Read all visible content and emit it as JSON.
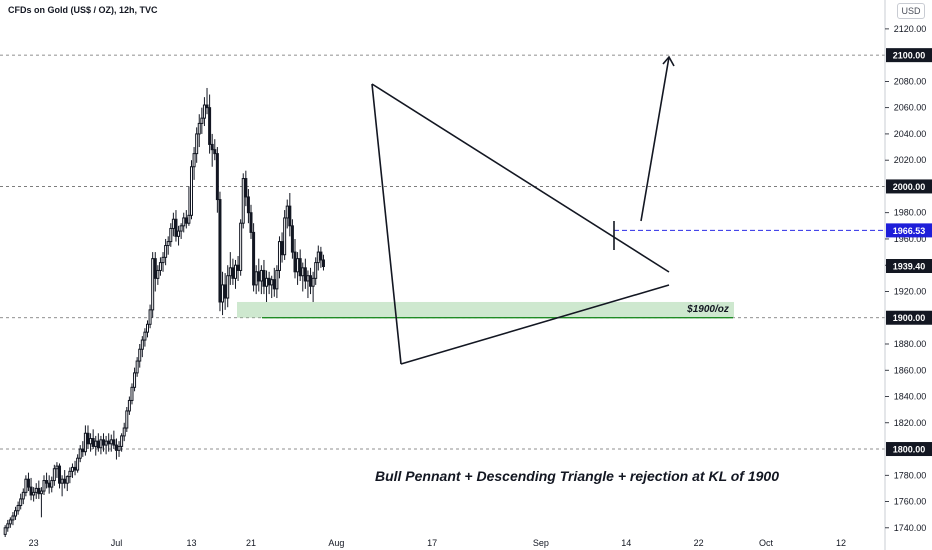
{
  "header": {
    "symbol_title": "CFDs on Gold (US$ / OZ), 12h, TVC",
    "currency_button": "USD"
  },
  "colors": {
    "candle": "#131722",
    "background": "#ffffff",
    "axis_text": "#131722",
    "level_line": "#6b6b6b",
    "target_line": "#2d2de6",
    "target_label_bg": "#1e1ed9",
    "support_zone": "#a5d6a7",
    "support_line": "#1f8b24"
  },
  "annotation": {
    "main_text": "Bull Pennant + Descending Triangle + rejection at KL of 1900",
    "zone_label": "$1900/oz"
  },
  "chart_data": {
    "type": "candlestick",
    "title": "",
    "xlabel": "",
    "ylabel": "",
    "ylim": [
      1733,
      2142
    ],
    "y_ticks": [
      1740,
      1760,
      1780,
      1800,
      1820,
      1840,
      1860,
      1880,
      1900,
      1920,
      1940,
      1960,
      1980,
      2000,
      2020,
      2040,
      2060,
      2080,
      2100,
      2120
    ],
    "x_ticks": [
      "23",
      "Jul",
      "13",
      "21",
      "Aug",
      "17",
      "Sep",
      "14",
      "22",
      "Oct",
      "12"
    ],
    "x_tick_bars": [
      11,
      43,
      72,
      95,
      128,
      165,
      207,
      240,
      268,
      294,
      323
    ],
    "x_range_bars": [
      -2,
      340
    ],
    "price_labels": [
      {
        "value": 2100.0,
        "text": "2100.00",
        "style": "dark"
      },
      {
        "value": 2000.0,
        "text": "2000.00",
        "style": "dark"
      },
      {
        "value": 1966.53,
        "text": "1966.53",
        "style": "blue"
      },
      {
        "value": 1939.4,
        "text": "1939.40",
        "style": "dark"
      },
      {
        "value": 1900.0,
        "text": "1900.00",
        "style": "dark"
      },
      {
        "value": 1800.0,
        "text": "1800.00",
        "style": "dark"
      }
    ],
    "horizontal_levels": [
      2100,
      2000,
      1900,
      1800
    ],
    "target_level": 1966.53,
    "support_zone": {
      "from": 1900,
      "to": 1912
    },
    "ohlc": [
      [
        1735,
        1742,
        1733,
        1740
      ],
      [
        1740,
        1746,
        1737,
        1743
      ],
      [
        1743,
        1748,
        1740,
        1746
      ],
      [
        1746,
        1752,
        1742,
        1749
      ],
      [
        1749,
        1756,
        1746,
        1753
      ],
      [
        1753,
        1760,
        1750,
        1757
      ],
      [
        1757,
        1766,
        1754,
        1762
      ],
      [
        1762,
        1770,
        1758,
        1767
      ],
      [
        1767,
        1780,
        1764,
        1777
      ],
      [
        1777,
        1782,
        1768,
        1771
      ],
      [
        1771,
        1778,
        1761,
        1765
      ],
      [
        1765,
        1771,
        1760,
        1767
      ],
      [
        1767,
        1774,
        1762,
        1770
      ],
      [
        1770,
        1776,
        1762,
        1766
      ],
      [
        1766,
        1771,
        1748,
        1768
      ],
      [
        1768,
        1780,
        1765,
        1776
      ],
      [
        1776,
        1782,
        1770,
        1774
      ],
      [
        1774,
        1780,
        1766,
        1771
      ],
      [
        1771,
        1779,
        1767,
        1776
      ],
      [
        1776,
        1788,
        1772,
        1785
      ],
      [
        1785,
        1790,
        1778,
        1787
      ],
      [
        1787,
        1789,
        1770,
        1774
      ],
      [
        1774,
        1780,
        1764,
        1777
      ],
      [
        1777,
        1784,
        1770,
        1774
      ],
      [
        1774,
        1780,
        1768,
        1779
      ],
      [
        1779,
        1786,
        1774,
        1783
      ],
      [
        1783,
        1789,
        1778,
        1786
      ],
      [
        1786,
        1791,
        1780,
        1784
      ],
      [
        1784,
        1796,
        1782,
        1793
      ],
      [
        1793,
        1803,
        1790,
        1800
      ],
      [
        1800,
        1806,
        1794,
        1798
      ],
      [
        1798,
        1818,
        1795,
        1812
      ],
      [
        1812,
        1818,
        1800,
        1804
      ],
      [
        1804,
        1812,
        1798,
        1808
      ],
      [
        1808,
        1815,
        1800,
        1802
      ],
      [
        1802,
        1810,
        1795,
        1806
      ],
      [
        1806,
        1812,
        1798,
        1801
      ],
      [
        1801,
        1810,
        1796,
        1807
      ],
      [
        1807,
        1812,
        1798,
        1803
      ],
      [
        1803,
        1810,
        1796,
        1806
      ],
      [
        1806,
        1812,
        1798,
        1804
      ],
      [
        1804,
        1811,
        1798,
        1807
      ],
      [
        1807,
        1814,
        1800,
        1803
      ],
      [
        1803,
        1808,
        1792,
        1799
      ],
      [
        1799,
        1806,
        1794,
        1802
      ],
      [
        1802,
        1812,
        1798,
        1810
      ],
      [
        1810,
        1820,
        1806,
        1816
      ],
      [
        1816,
        1832,
        1813,
        1829
      ],
      [
        1829,
        1840,
        1826,
        1837
      ],
      [
        1837,
        1850,
        1834,
        1847
      ],
      [
        1847,
        1862,
        1844,
        1858
      ],
      [
        1858,
        1870,
        1855,
        1867
      ],
      [
        1867,
        1880,
        1862,
        1876
      ],
      [
        1876,
        1886,
        1870,
        1883
      ],
      [
        1883,
        1892,
        1878,
        1889
      ],
      [
        1889,
        1898,
        1885,
        1895
      ],
      [
        1895,
        1910,
        1892,
        1906
      ],
      [
        1906,
        1950,
        1900,
        1945
      ],
      [
        1945,
        1950,
        1920,
        1930
      ],
      [
        1930,
        1940,
        1925,
        1936
      ],
      [
        1936,
        1946,
        1932,
        1942
      ],
      [
        1942,
        1950,
        1935,
        1946
      ],
      [
        1946,
        1960,
        1940,
        1955
      ],
      [
        1955,
        1962,
        1948,
        1958
      ],
      [
        1958,
        1972,
        1954,
        1968
      ],
      [
        1968,
        1980,
        1962,
        1975
      ],
      [
        1975,
        1982,
        1958,
        1962
      ],
      [
        1962,
        1970,
        1955,
        1966
      ],
      [
        1966,
        1972,
        1960,
        1970
      ],
      [
        1970,
        1980,
        1965,
        1976
      ],
      [
        1976,
        1982,
        1968,
        1972
      ],
      [
        1972,
        2000,
        1970,
        1978
      ],
      [
        1978,
        2020,
        1975,
        2015
      ],
      [
        2015,
        2030,
        2005,
        2025
      ],
      [
        2025,
        2045,
        2018,
        2040
      ],
      [
        2040,
        2055,
        2030,
        2048
      ],
      [
        2048,
        2060,
        2040,
        2052
      ],
      [
        2052,
        2068,
        2046,
        2062
      ],
      [
        2062,
        2075,
        2055,
        2060
      ],
      [
        2060,
        2070,
        2025,
        2032
      ],
      [
        2032,
        2040,
        2015,
        2028
      ],
      [
        2028,
        2036,
        2020,
        2025
      ],
      [
        2025,
        2030,
        1980,
        1990
      ],
      [
        1990,
        1996,
        1905,
        1912
      ],
      [
        1912,
        1935,
        1902,
        1925
      ],
      [
        1925,
        1934,
        1906,
        1915
      ],
      [
        1915,
        1940,
        1908,
        1932
      ],
      [
        1932,
        1950,
        1925,
        1938
      ],
      [
        1938,
        1945,
        1925,
        1930
      ],
      [
        1930,
        1944,
        1922,
        1940
      ],
      [
        1940,
        1947,
        1928,
        1936
      ],
      [
        1936,
        1975,
        1932,
        1972
      ],
      [
        1972,
        2010,
        1968,
        2006
      ],
      [
        2006,
        2012,
        1985,
        1992
      ],
      [
        1992,
        1998,
        1972,
        1980
      ],
      [
        1980,
        1986,
        1960,
        1965
      ],
      [
        1965,
        1972,
        1920,
        1925
      ],
      [
        1925,
        1940,
        1918,
        1935
      ],
      [
        1935,
        1945,
        1920,
        1928
      ],
      [
        1928,
        1940,
        1918,
        1936
      ],
      [
        1936,
        1944,
        1918,
        1924
      ],
      [
        1924,
        1936,
        1912,
        1930
      ],
      [
        1930,
        1935,
        1918,
        1925
      ],
      [
        1925,
        1932,
        1915,
        1929
      ],
      [
        1929,
        1938,
        1916,
        1922
      ],
      [
        1922,
        1940,
        1915,
        1936
      ],
      [
        1936,
        1962,
        1930,
        1958
      ],
      [
        1958,
        1965,
        1942,
        1948
      ],
      [
        1948,
        1982,
        1944,
        1976
      ],
      [
        1976,
        1990,
        1968,
        1985
      ],
      [
        1985,
        1995,
        1962,
        1970
      ],
      [
        1970,
        1975,
        1945,
        1950
      ],
      [
        1950,
        1960,
        1930,
        1935
      ],
      [
        1935,
        1950,
        1925,
        1945
      ],
      [
        1945,
        1952,
        1928,
        1932
      ],
      [
        1932,
        1942,
        1920,
        1938
      ],
      [
        1938,
        1945,
        1922,
        1928
      ],
      [
        1928,
        1936,
        1915,
        1932
      ],
      [
        1932,
        1938,
        1918,
        1924
      ],
      [
        1924,
        1935,
        1912,
        1930
      ],
      [
        1930,
        1946,
        1925,
        1942
      ],
      [
        1942,
        1955,
        1936,
        1950
      ],
      [
        1950,
        1954,
        1938,
        1944
      ],
      [
        1944,
        1948,
        1936,
        1939
      ]
    ]
  }
}
